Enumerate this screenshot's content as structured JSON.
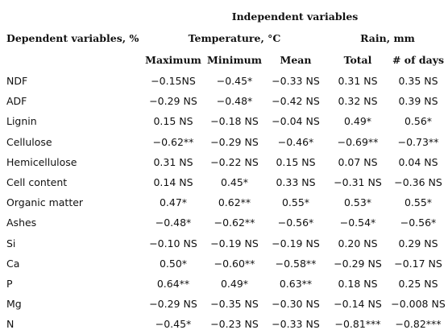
{
  "header": {
    "independent_label": "Independent variables",
    "dependent_label": "Dependent variables, %",
    "temperature_label": "Temperature, °C",
    "rain_label": "Rain, mm",
    "columns": [
      "Maximum",
      "Minimum",
      "Mean",
      "Total",
      "# of days"
    ]
  },
  "rows": [
    {
      "variable": "NDF",
      "values": [
        "−0.15NS",
        "−0.45*",
        "−0.33 NS",
        "0.31 NS",
        "0.35 NS"
      ]
    },
    {
      "variable": "ADF",
      "values": [
        "−0.29 NS",
        "−0.48*",
        "−0.42 NS",
        "0.32 NS",
        "0.39 NS"
      ]
    },
    {
      "variable": "Lignin",
      "values": [
        "0.15 NS",
        "−0.18 NS",
        "−0.04 NS",
        "0.49*",
        "0.56*"
      ]
    },
    {
      "variable": "Cellulose",
      "values": [
        "−0.62**",
        "−0.29 NS",
        "−0.46*",
        "−0.69**",
        "−0.73**"
      ]
    },
    {
      "variable": "Hemicellulose",
      "values": [
        "0.31 NS",
        "−0.22 NS",
        "0.15 NS",
        "0.07 NS",
        "0.04 NS"
      ]
    },
    {
      "variable": "Cell content",
      "values": [
        "0.14 NS",
        "0.45*",
        "0.33 NS",
        "−0.31 NS",
        "−0.36 NS"
      ]
    },
    {
      "variable": "Organic matter",
      "values": [
        "0.47*",
        "0.62**",
        "0.55*",
        "0.53*",
        "0.55*"
      ]
    },
    {
      "variable": "Ashes",
      "values": [
        "−0.48*",
        "−0.62**",
        "−0.56*",
        "−0.54*",
        "−0.56*"
      ]
    },
    {
      "variable": "Si",
      "values": [
        "−0.10 NS",
        "−0.19 NS",
        "−0.19 NS",
        "0.20 NS",
        "0.29 NS"
      ]
    },
    {
      "variable": "Ca",
      "values": [
        "0.50*",
        "−0.60**",
        "−0.58**",
        "−0.29 NS",
        "−0.17 NS"
      ]
    },
    {
      "variable": "P",
      "values": [
        "0.64**",
        "0.49*",
        "0.63**",
        "0.18 NS",
        "0.25 NS"
      ]
    },
    {
      "variable": "Mg",
      "values": [
        "−0.29 NS",
        "−0.35 NS",
        "−0.30 NS",
        "−0.14 NS",
        "−0.008 NS"
      ]
    },
    {
      "variable": "N",
      "values": [
        "−0.45*",
        "−0.23 NS",
        "−0.33 NS",
        "−0.81***",
        "−0.82***"
      ]
    }
  ]
}
